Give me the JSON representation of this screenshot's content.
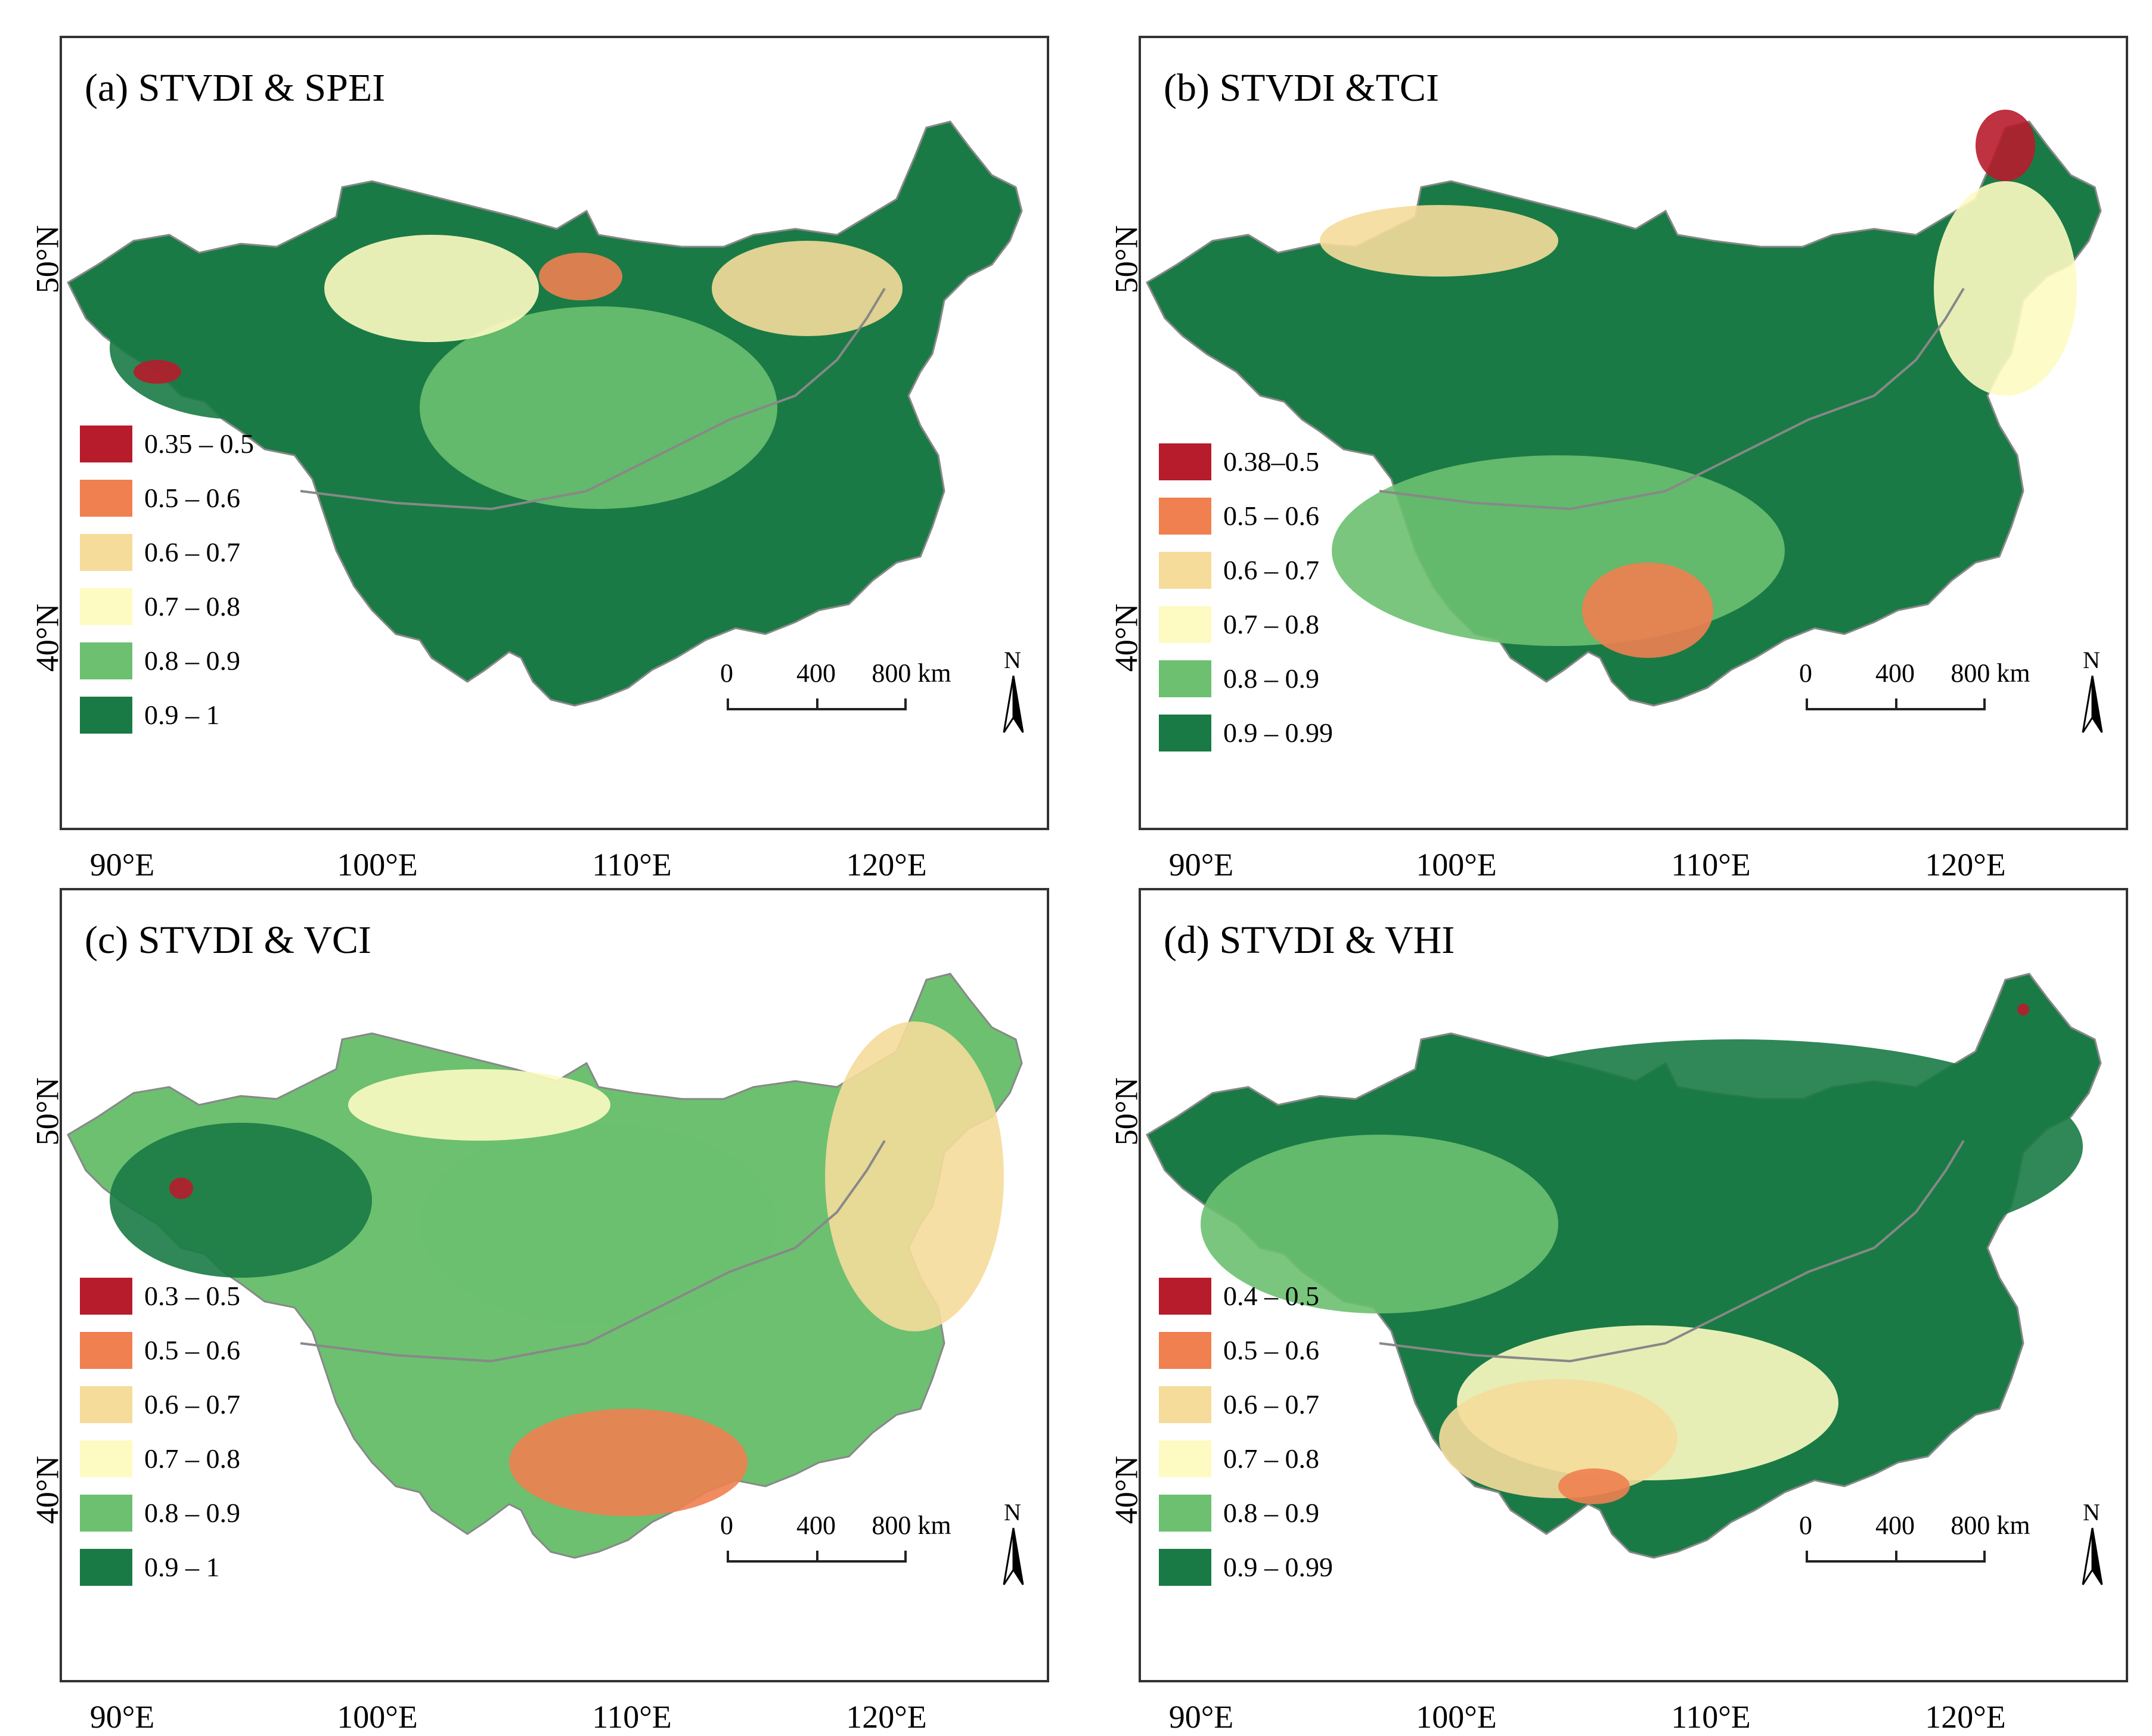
{
  "colors": {
    "c1": "#b71c2c",
    "c2": "#f08050",
    "c3": "#f5dc9a",
    "c4": "#fdfbc2",
    "c5": "#6cc070",
    "c6": "#1a7a45",
    "boundary": "#888888"
  },
  "panels": [
    {
      "title": "(a) STVDI & SPEI",
      "legend": [
        "0.35 – 0.5",
        "0.5 – 0.6",
        "0.6 – 0.7",
        "0.7 – 0.8",
        "0.8 – 0.9",
        "0.9 – 1"
      ],
      "dominant_classes": [
        "c6",
        "c5",
        "c4",
        "c3",
        "c2",
        "c1"
      ]
    },
    {
      "title": "(b) STVDI &TCI",
      "legend": [
        "0.38–0.5",
        "0.5 – 0.6",
        "0.6 – 0.7",
        "0.7 – 0.8",
        "0.8 – 0.9",
        "0.9 – 0.99"
      ],
      "dominant_classes": [
        "c6",
        "c5",
        "c4",
        "c3",
        "c2",
        "c1"
      ]
    },
    {
      "title": "(c) STVDI & VCI",
      "legend": [
        "0.3 – 0.5",
        "0.5 – 0.6",
        "0.6 – 0.7",
        "0.7 – 0.8",
        "0.8 – 0.9",
        "0.9 – 1"
      ],
      "dominant_classes": [
        "c5",
        "c6",
        "c3",
        "c4",
        "c2",
        "c1"
      ]
    },
    {
      "title": "(d) STVDI & VHI",
      "legend": [
        "0.4 – 0.5",
        "0.5 – 0.6",
        "0.6 – 0.7",
        "0.7 – 0.8",
        "0.8 – 0.9",
        "0.9 – 0.99"
      ],
      "dominant_classes": [
        "c6",
        "c5",
        "c4",
        "c3",
        "c2",
        "c1"
      ]
    }
  ],
  "axes": {
    "lon_labels": [
      "90°E",
      "100°E",
      "110°E",
      "120°E"
    ],
    "lat_labels": [
      "50°N",
      "40°N"
    ]
  },
  "scalebar": {
    "ticks": [
      "0",
      "400",
      "800 km"
    ]
  },
  "north": "N"
}
